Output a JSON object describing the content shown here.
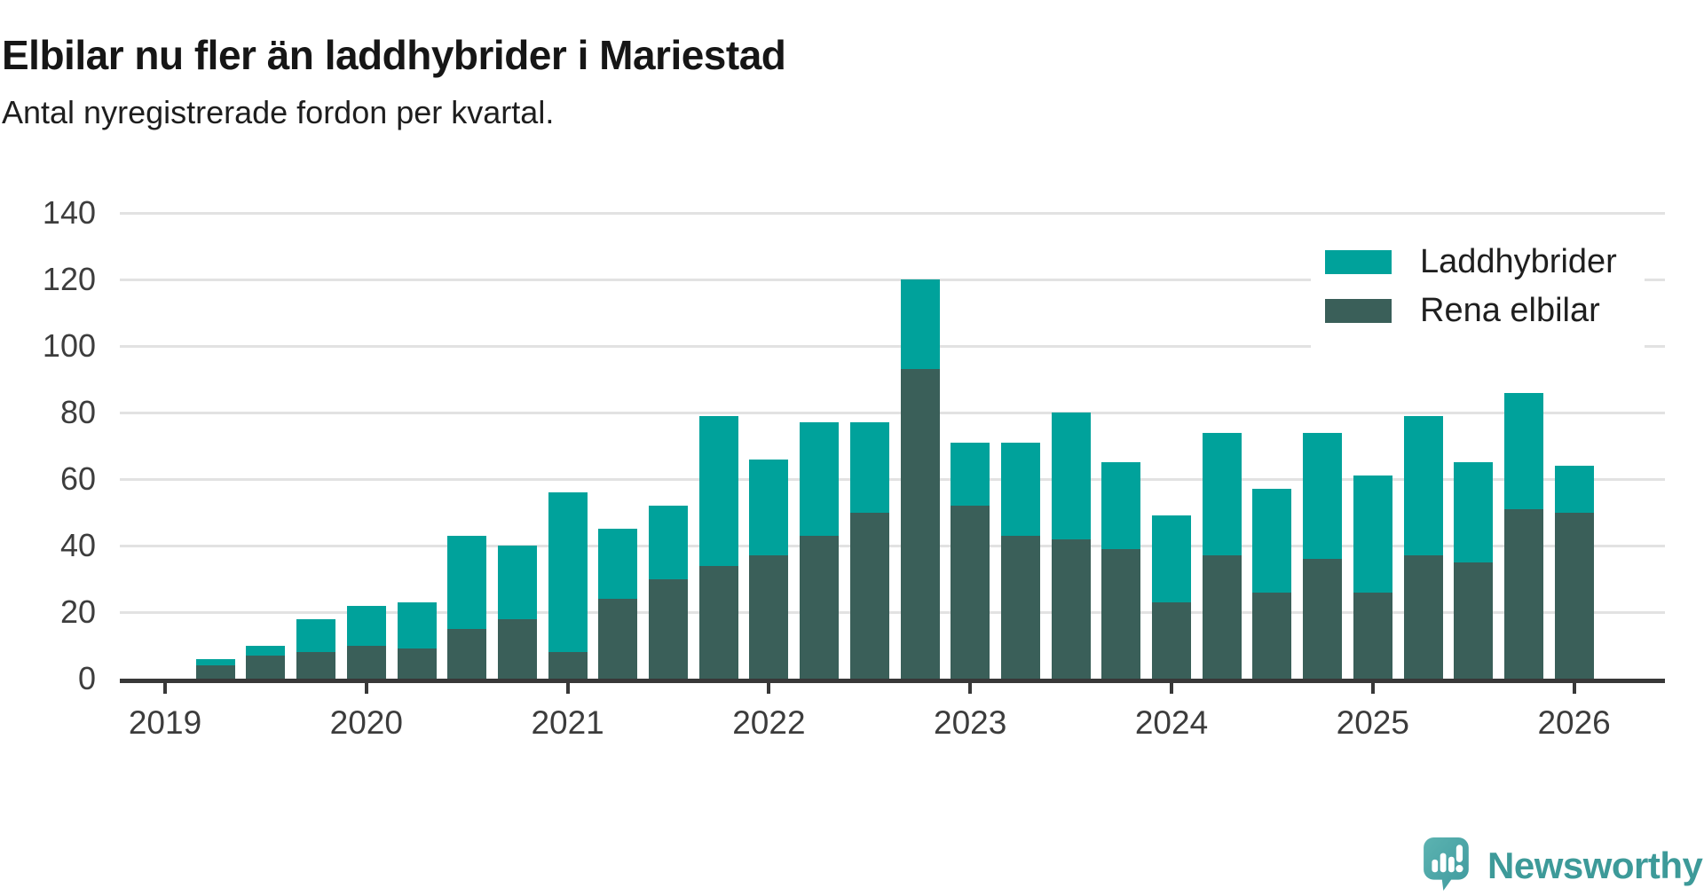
{
  "chart_data": {
    "type": "bar",
    "stacked": true,
    "title": "Elbilar nu fler än laddhybrider i Mariestad",
    "subtitle": "Antal nyregistrerade fordon per kvartal.",
    "xlabel": "",
    "ylabel": "",
    "ylim": [
      0,
      140
    ],
    "ytick_values": [
      0,
      20,
      40,
      60,
      80,
      100,
      120,
      140
    ],
    "ytick_labels": [
      "0",
      "20",
      "40",
      "60",
      "80",
      "100",
      "120",
      "140"
    ],
    "xtick_year_labels": [
      "2019",
      "2020",
      "2021",
      "2022",
      "2023",
      "2024",
      "2025",
      "2026"
    ],
    "grid": "horizontal",
    "legend_position": "top-right",
    "categories": [
      "2019 Q2",
      "2019 Q3",
      "2019 Q4",
      "2020 Q1",
      "2020 Q2",
      "2020 Q3",
      "2020 Q4",
      "2021 Q1",
      "2021 Q2",
      "2021 Q3",
      "2021 Q4",
      "2022 Q1",
      "2022 Q2",
      "2022 Q3",
      "2022 Q4",
      "2023 Q1",
      "2023 Q2",
      "2023 Q3",
      "2023 Q4",
      "2024 Q1",
      "2024 Q2",
      "2024 Q3",
      "2024 Q4",
      "2025 Q1",
      "2025 Q2",
      "2025 Q3",
      "2025 Q4",
      "2026 Q1"
    ],
    "series": [
      {
        "name": "Laddhybrider",
        "color": "#00a29b",
        "values": [
          2,
          3,
          10,
          12,
          14,
          28,
          22,
          48,
          21,
          22,
          45,
          29,
          34,
          27,
          27,
          19,
          28,
          38,
          26,
          26,
          37,
          31,
          38,
          35,
          42,
          30,
          35,
          14
        ]
      },
      {
        "name": "Rena elbilar",
        "color": "#3a5f59",
        "values": [
          4,
          7,
          8,
          10,
          9,
          15,
          18,
          8,
          24,
          30,
          34,
          37,
          43,
          50,
          93,
          52,
          43,
          42,
          39,
          23,
          37,
          26,
          36,
          26,
          37,
          35,
          51,
          50
        ]
      }
    ],
    "stack_totals": [
      6,
      10,
      18,
      22,
      23,
      43,
      40,
      56,
      45,
      52,
      79,
      66,
      77,
      77,
      120,
      71,
      71,
      80,
      65,
      49,
      74,
      57,
      74,
      61,
      79,
      65,
      86,
      64
    ]
  },
  "colors": {
    "grid": "#e2e2e2",
    "axis": "#383838",
    "tick_text": "#3c3c3c",
    "title_text": "#161616"
  },
  "branding": {
    "label": "Newsworthy",
    "color": "#3d9a99"
  }
}
